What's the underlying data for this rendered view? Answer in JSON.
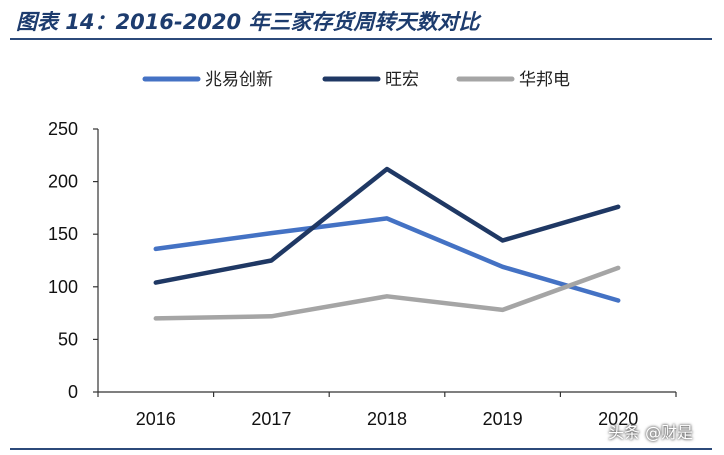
{
  "title": "图表 14：2016-2020 年三家存货周转天数对比",
  "watermark": "头条 @财是",
  "chart_data": {
    "type": "line",
    "title": "图表 14：2016-2020 年三家存货周转天数对比",
    "xlabel": "",
    "ylabel": "",
    "categories": [
      "2016",
      "2017",
      "2018",
      "2019",
      "2020"
    ],
    "ylim": [
      0,
      250
    ],
    "yticks": [
      0,
      50,
      100,
      150,
      200,
      250
    ],
    "grid": false,
    "legend_position": "top",
    "series": [
      {
        "name": "兆易创新",
        "color": "#4472c4",
        "values": [
          136,
          151,
          165,
          119,
          87
        ]
      },
      {
        "name": "旺宏",
        "color": "#1f3864",
        "values": [
          104,
          125,
          212,
          144,
          176
        ]
      },
      {
        "name": "华邦电",
        "color": "#a5a5a5",
        "values": [
          70,
          72,
          91,
          78,
          118
        ]
      }
    ]
  }
}
